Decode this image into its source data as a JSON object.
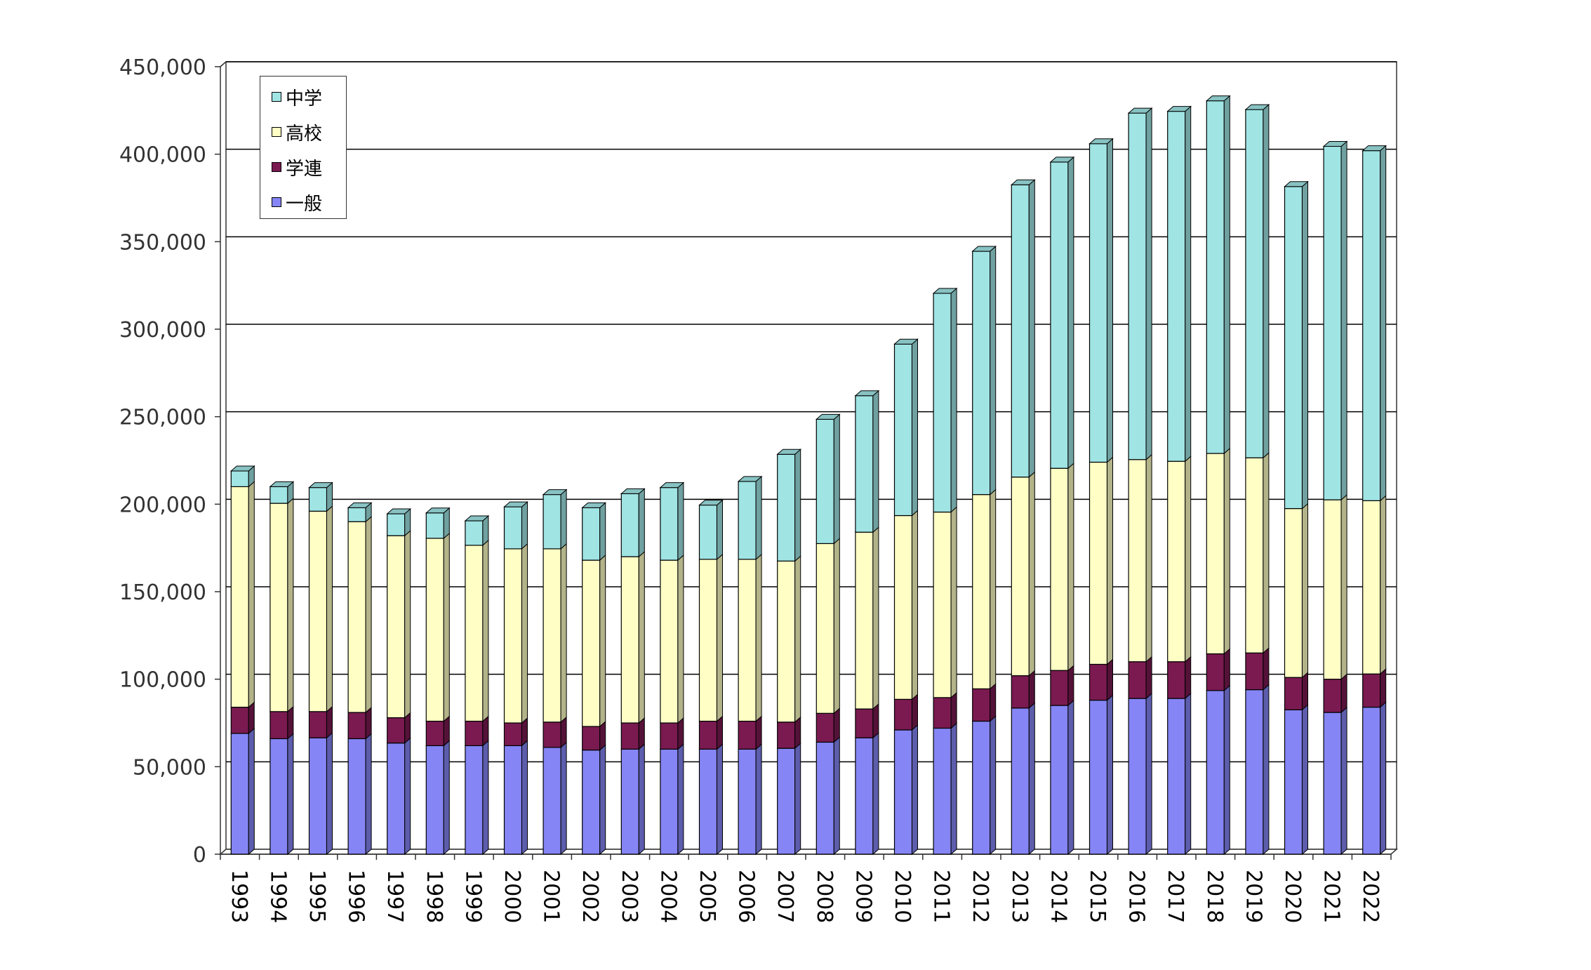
{
  "chart_data": {
    "type": "bar",
    "stacked": true,
    "title": "",
    "xlabel": "",
    "ylabel": "",
    "ylim": [
      0,
      450000
    ],
    "y_ticks": [
      "0",
      "50,000",
      "100,000",
      "150,000",
      "200,000",
      "250,000",
      "300,000",
      "350,000",
      "400,000",
      "450,000"
    ],
    "y_tick_values": [
      0,
      50000,
      100000,
      150000,
      200000,
      250000,
      300000,
      350000,
      400000,
      450000
    ],
    "grid": true,
    "legend_position": "top-left",
    "categories": [
      "1993",
      "1994",
      "1995",
      "1996",
      "1997",
      "1998",
      "1999",
      "2000",
      "2001",
      "2002",
      "2003",
      "2004",
      "2005",
      "2006",
      "2007",
      "2008",
      "2009",
      "2010",
      "2011",
      "2012",
      "2013",
      "2014",
      "2015",
      "2016",
      "2017",
      "2018",
      "2019",
      "2020",
      "2021",
      "2022"
    ],
    "series": [
      {
        "name": "一般",
        "color": "#8585f5",
        "values": [
          69000,
          66000,
          66500,
          66000,
          63500,
          62000,
          62000,
          62000,
          61000,
          59500,
          60000,
          60000,
          60000,
          60000,
          60500,
          64000,
          66500,
          71000,
          72000,
          76000,
          83500,
          85000,
          88000,
          89000,
          89000,
          93500,
          94000,
          82500,
          81000,
          84000
        ]
      },
      {
        "name": "学連",
        "color": "#7a1a50",
        "values": [
          15000,
          15500,
          15000,
          15000,
          14500,
          14000,
          14000,
          13000,
          14500,
          13500,
          15000,
          15000,
          16000,
          16000,
          15000,
          16500,
          16500,
          17500,
          17500,
          18500,
          18500,
          20000,
          20500,
          21000,
          21000,
          21000,
          21000,
          18500,
          19000,
          19000
        ]
      },
      {
        "name": "高校",
        "color": "#ffffc5",
        "values": [
          126000,
          119000,
          114500,
          109000,
          104000,
          104500,
          100500,
          99500,
          99000,
          95000,
          95000,
          93000,
          92500,
          92500,
          92000,
          97000,
          101000,
          105000,
          106000,
          111000,
          113500,
          115500,
          115500,
          115500,
          114500,
          114500,
          111500,
          96500,
          102500,
          99000
        ]
      },
      {
        "name": "中学",
        "color": "#a0e4e4",
        "values": [
          9000,
          9500,
          13500,
          8000,
          12500,
          14500,
          14000,
          24000,
          31000,
          30000,
          36000,
          41500,
          31000,
          44500,
          61000,
          71000,
          78000,
          98000,
          125000,
          139000,
          167000,
          175000,
          182000,
          198000,
          200000,
          201500,
          199000,
          184000,
          202000,
          200000
        ]
      }
    ]
  }
}
